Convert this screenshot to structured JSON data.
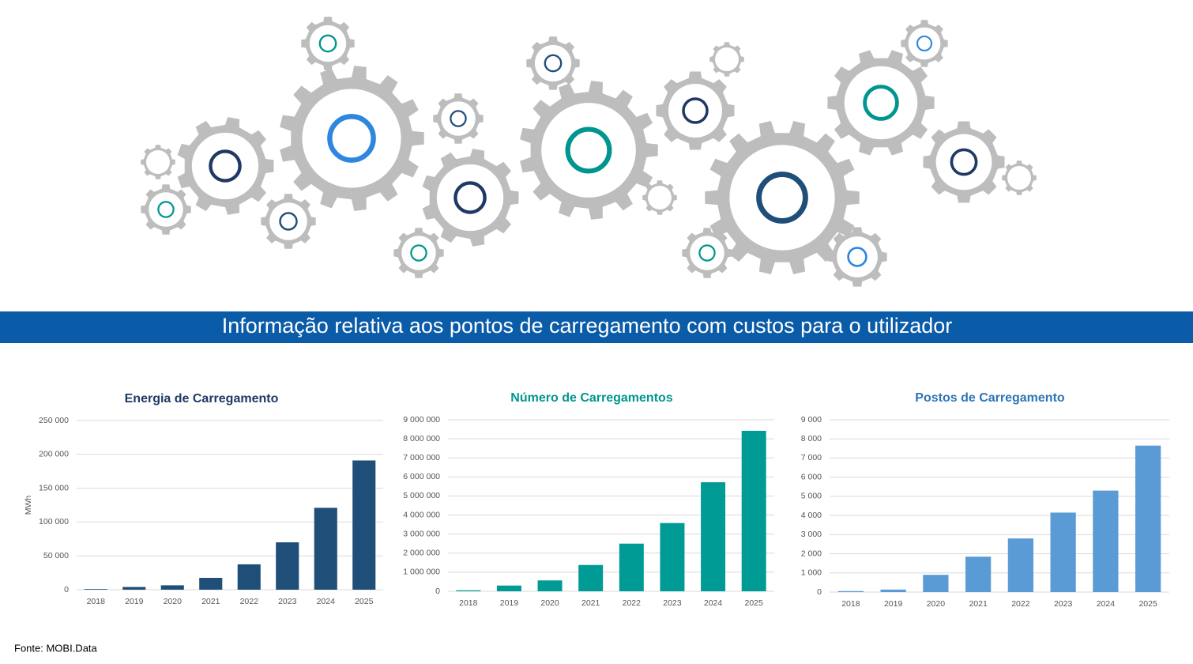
{
  "header": {
    "title": "Informação relativa aos pontos de carregamento com custos para o utilizador"
  },
  "footer": {
    "source": "Fonte: MOBI.Data"
  },
  "chart_data": [
    {
      "type": "bar",
      "title": "Energia de Carregamento",
      "title_color": "#1f3864",
      "y_label": "MWh",
      "categories": [
        "2018",
        "2019",
        "2020",
        "2021",
        "2022",
        "2023",
        "2024",
        "2025"
      ],
      "values": [
        1000,
        4000,
        6500,
        17500,
        37500,
        70000,
        121000,
        191000
      ],
      "color": "#1f4e79",
      "ylim": [
        0,
        250000
      ],
      "yticks": [
        0,
        {
          "value": 50000,
          "label": "50 000"
        },
        {
          "value": 100000,
          "label": "100 000"
        },
        {
          "value": 150000,
          "label": "150 000"
        },
        {
          "value": 200000,
          "label": "200 000"
        },
        {
          "value": 250000,
          "label": "250 000"
        }
      ],
      "grid": true
    },
    {
      "type": "bar",
      "title": "Número de Carregamentos",
      "title_color": "#00968f",
      "categories": [
        "2018",
        "2019",
        "2020",
        "2021",
        "2022",
        "2023",
        "2024",
        "2025"
      ],
      "values": [
        50000,
        300000,
        570000,
        1380000,
        2500000,
        3580000,
        5720000,
        8420000
      ],
      "color": "#009b95",
      "ylim": [
        0,
        9000000
      ],
      "yticks": [
        0,
        {
          "value": 1000000,
          "label": "1 000 000"
        },
        {
          "value": 2000000,
          "label": "2 000 000"
        },
        {
          "value": 3000000,
          "label": "3 000 000"
        },
        {
          "value": 4000000,
          "label": "4 000 000"
        },
        {
          "value": 5000000,
          "label": "5 000 000"
        },
        {
          "value": 6000000,
          "label": "6 000 000"
        },
        {
          "value": 7000000,
          "label": "7 000 000"
        },
        {
          "value": 8000000,
          "label": "8 000 000"
        },
        {
          "value": 9000000,
          "label": "9 000 000"
        }
      ],
      "grid": true
    },
    {
      "type": "bar",
      "title": "Postos de Carregamento",
      "title_color": "#2e75b6",
      "categories": [
        "2018",
        "2019",
        "2020",
        "2021",
        "2022",
        "2023",
        "2024",
        "2025"
      ],
      "values": [
        50,
        130,
        900,
        1850,
        2800,
        4150,
        5300,
        7650
      ],
      "color": "#5b9bd5",
      "ylim": [
        0,
        9000
      ],
      "yticks": [
        0,
        {
          "value": 1000,
          "label": "1 000"
        },
        {
          "value": 2000,
          "label": "2 000"
        },
        {
          "value": 3000,
          "label": "3 000"
        },
        {
          "value": 4000,
          "label": "4 000"
        },
        {
          "value": 5000,
          "label": "5 000"
        },
        {
          "value": 6000,
          "label": "6 000"
        },
        {
          "value": 7000,
          "label": "7 000"
        },
        {
          "value": 8000,
          "label": "8 000"
        },
        {
          "value": 9000,
          "label": "9 000"
        }
      ],
      "grid": true
    }
  ]
}
